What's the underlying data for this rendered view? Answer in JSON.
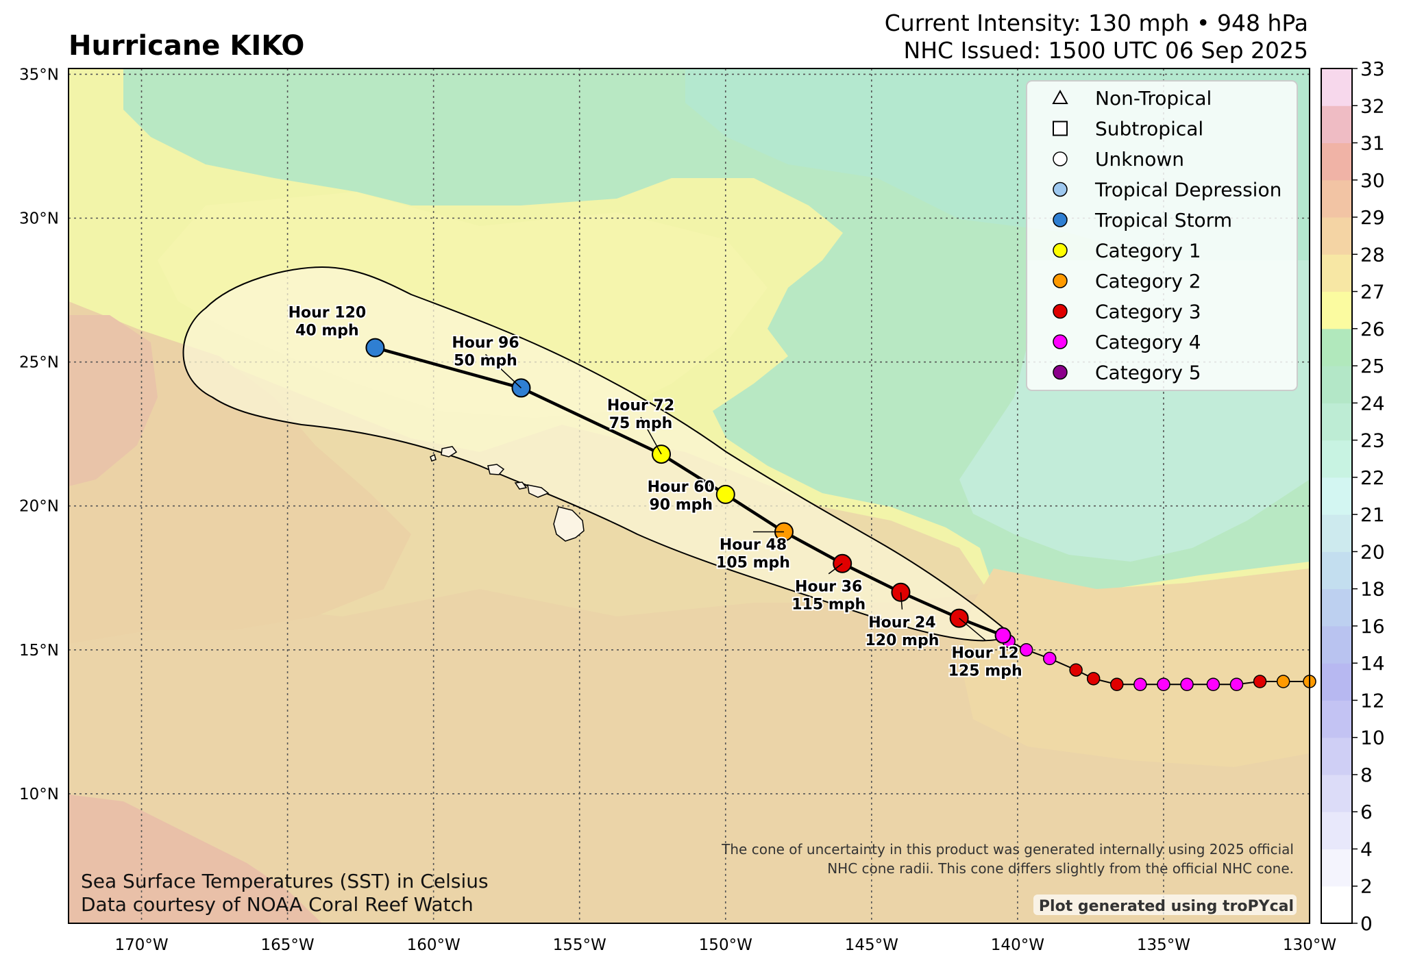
{
  "title": "Hurricane KIKO",
  "header": {
    "line1": "Current Intensity: 130 mph • 948 hPa",
    "line2": "NHC Issued: 1500 UTC 06 Sep 2025"
  },
  "map": {
    "lon_range": [
      -172.5,
      -130
    ],
    "lat_range": [
      5.5,
      35.2
    ],
    "lon_ticks": [
      {
        "v": -170,
        "label": "170°W"
      },
      {
        "v": -165,
        "label": "165°W"
      },
      {
        "v": -160,
        "label": "160°W"
      },
      {
        "v": -155,
        "label": "155°W"
      },
      {
        "v": -150,
        "label": "150°W"
      },
      {
        "v": -145,
        "label": "145°W"
      },
      {
        "v": -140,
        "label": "140°W"
      },
      {
        "v": -135,
        "label": "135°W"
      },
      {
        "v": -130,
        "label": "130°W"
      }
    ],
    "lat_ticks": [
      {
        "v": 35,
        "label": "35°N"
      },
      {
        "v": 30,
        "label": "30°N"
      },
      {
        "v": 25,
        "label": "25°N"
      },
      {
        "v": 20,
        "label": "20°N"
      },
      {
        "v": 15,
        "label": "15°N"
      },
      {
        "v": 10,
        "label": "10°N"
      }
    ],
    "grid": true
  },
  "colors": {
    "td": "#9ec8ef",
    "ts": "#2f7fd2",
    "cat1": "#ffff00",
    "cat2": "#ff9a00",
    "cat3": "#e00000",
    "cat4": "#ff00ff",
    "cat5": "#8b008b"
  },
  "chart_data": {
    "type": "map",
    "past_track": [
      {
        "lon": -130,
        "lat": 13.9,
        "cat": "cat2"
      },
      {
        "lon": -130.9,
        "lat": 13.9,
        "cat": "cat2"
      },
      {
        "lon": -131.7,
        "lat": 13.9,
        "cat": "cat3"
      },
      {
        "lon": -132.5,
        "lat": 13.8,
        "cat": "cat4"
      },
      {
        "lon": -133.3,
        "lat": 13.8,
        "cat": "cat4"
      },
      {
        "lon": -134.2,
        "lat": 13.8,
        "cat": "cat4"
      },
      {
        "lon": -135.0,
        "lat": 13.8,
        "cat": "cat4"
      },
      {
        "lon": -135.8,
        "lat": 13.8,
        "cat": "cat4"
      },
      {
        "lon": -136.6,
        "lat": 13.8,
        "cat": "cat3"
      },
      {
        "lon": -137.4,
        "lat": 14.0,
        "cat": "cat3"
      },
      {
        "lon": -138.0,
        "lat": 14.3,
        "cat": "cat3"
      },
      {
        "lon": -138.9,
        "lat": 14.7,
        "cat": "cat4"
      },
      {
        "lon": -139.7,
        "lat": 15.0,
        "cat": "cat4"
      },
      {
        "lon": -140.3,
        "lat": 15.3,
        "cat": "cat4"
      }
    ],
    "forecast": [
      {
        "hour": 0,
        "lon": -140.5,
        "lat": 15.5,
        "cat": "cat4",
        "label": ""
      },
      {
        "hour": 12,
        "lon": -142.0,
        "lat": 16.1,
        "cat": "cat3",
        "label": "Hour 12",
        "wind": "125 mph"
      },
      {
        "hour": 24,
        "lon": -144.0,
        "lat": 17.0,
        "cat": "cat3",
        "label": "Hour 24",
        "wind": "120 mph"
      },
      {
        "hour": 36,
        "lon": -146.0,
        "lat": 18.0,
        "cat": "cat3",
        "label": "Hour 36",
        "wind": "115 mph"
      },
      {
        "hour": 48,
        "lon": -148.0,
        "lat": 19.1,
        "cat": "cat2",
        "label": "Hour 48",
        "wind": "105 mph"
      },
      {
        "hour": 60,
        "lon": -150.0,
        "lat": 20.4,
        "cat": "cat1",
        "label": "Hour 60",
        "wind": "90 mph"
      },
      {
        "hour": 72,
        "lon": -152.2,
        "lat": 21.8,
        "cat": "cat1",
        "label": "Hour 72",
        "wind": "75 mph"
      },
      {
        "hour": 96,
        "lon": -157.0,
        "lat": 24.1,
        "cat": "ts",
        "label": "Hour 96",
        "wind": "50 mph"
      },
      {
        "hour": 120,
        "lon": -162.0,
        "lat": 25.5,
        "cat": "ts",
        "label": "Hour 120",
        "wind": "40 mph"
      }
    ],
    "colorbar": {
      "label_unit": "Celsius",
      "ticks": [
        0,
        2,
        4,
        6,
        8,
        10,
        12,
        14,
        16,
        18,
        20,
        21,
        22,
        23,
        24,
        25,
        26,
        27,
        28,
        29,
        30,
        31,
        32,
        33
      ],
      "colors": [
        "#ffffff",
        "#f4f4fd",
        "#e8e8fb",
        "#dcdcf8",
        "#cfcff5",
        "#c3c3f3",
        "#b7b8f1",
        "#b9c3f0",
        "#bdd0f0",
        "#c3deef",
        "#cdeaee",
        "#d3f6f2",
        "#c8f3e2",
        "#bdecd4",
        "#b3e7c7",
        "#b1e8bc",
        "#fbfba0",
        "#f7e7a4",
        "#f4d4a4",
        "#f2c4a4",
        "#f0b3a6",
        "#efbcc4",
        "#f7d8ec"
      ]
    }
  },
  "legend": [
    {
      "shape": "triangle",
      "label": "Non-Tropical"
    },
    {
      "shape": "square",
      "label": "Subtropical"
    },
    {
      "shape": "circle",
      "fill": "#ffffff",
      "label": "Unknown"
    },
    {
      "shape": "circle",
      "fill": "#9ec8ef",
      "label": "Tropical Depression"
    },
    {
      "shape": "circle",
      "fill": "#2f7fd2",
      "label": "Tropical Storm"
    },
    {
      "shape": "circle",
      "fill": "#ffff00",
      "label": "Category 1"
    },
    {
      "shape": "circle",
      "fill": "#ff9a00",
      "label": "Category 2"
    },
    {
      "shape": "circle",
      "fill": "#e00000",
      "label": "Category 3"
    },
    {
      "shape": "circle",
      "fill": "#ff00ff",
      "label": "Category 4"
    },
    {
      "shape": "circle",
      "fill": "#8b008b",
      "label": "Category 5"
    }
  ],
  "notes": {
    "cone_line1": "The cone of uncertainty in this product was generated internally using 2025 official",
    "cone_line2": "NHC cone radii. This cone differs slightly from the official NHC cone.",
    "credit": "Plot generated using troPYcal",
    "sst_line1": "Sea Surface Temperatures (SST) in Celsius",
    "sst_line2": "Data courtesy of NOAA Coral Reef Watch"
  }
}
